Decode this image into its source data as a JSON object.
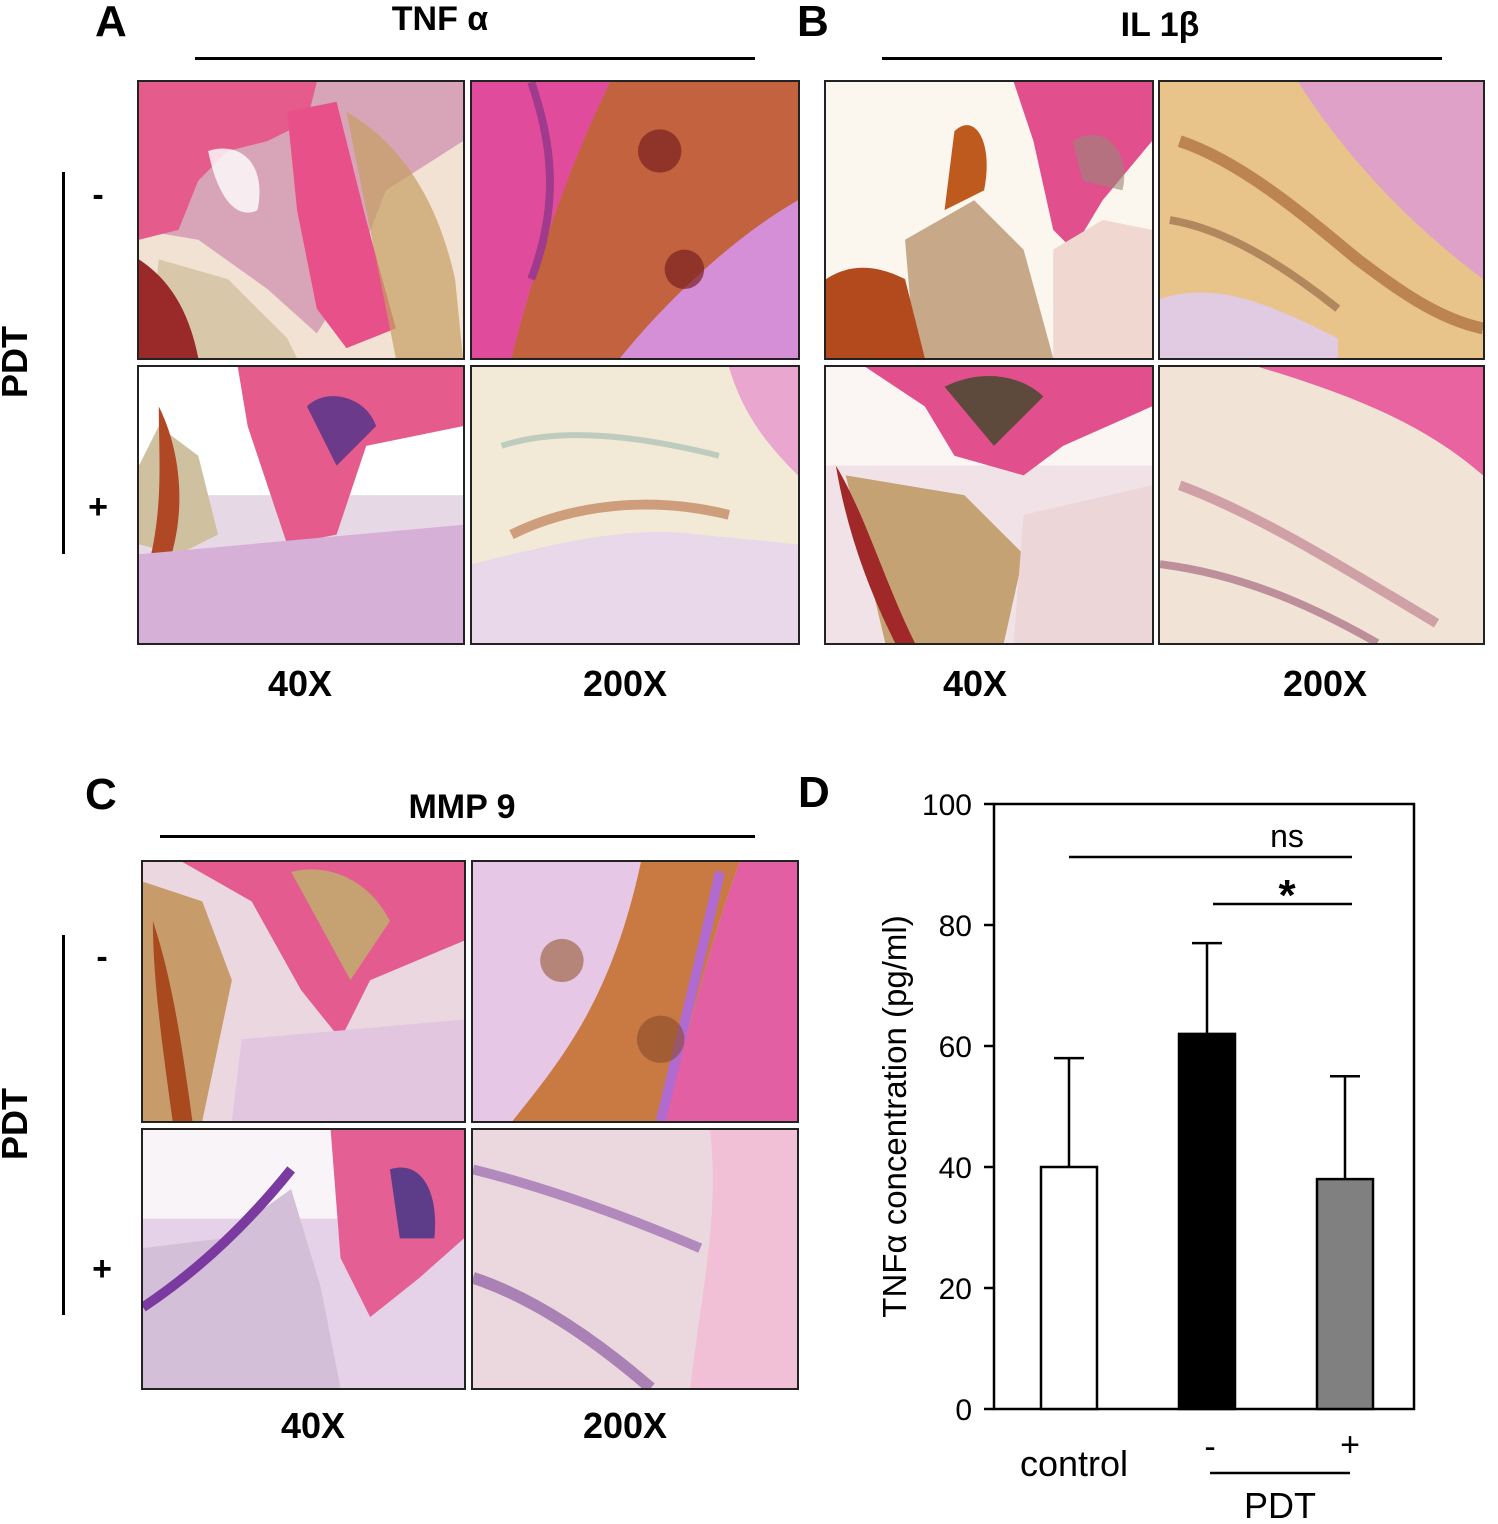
{
  "panels": {
    "A": {
      "letter": "A",
      "marker": "TNF α",
      "side_label": "PDT",
      "minus": "-",
      "plus": "+",
      "mag_low": "40X",
      "mag_high": "200X"
    },
    "B": {
      "letter": "B",
      "marker": "IL 1β",
      "mag_low": "40X",
      "mag_high": "200X"
    },
    "C": {
      "letter": "C",
      "marker": "MMP 9",
      "side_label": "PDT",
      "minus": "-",
      "plus": "+",
      "mag_low": "40X",
      "mag_high": "200X"
    },
    "D": {
      "letter": "D"
    }
  },
  "chart_data": {
    "type": "bar",
    "categories": [
      "control",
      "-",
      "+"
    ],
    "group_label": "PDT",
    "values": [
      40,
      62,
      38
    ],
    "errors": [
      18,
      15,
      17
    ],
    "bar_colors": [
      "#ffffff",
      "#000000",
      "#808080"
    ],
    "ylabel": "TNFα concentration (pg/ml)",
    "ylim": [
      0,
      100
    ],
    "yticks": [
      0,
      20,
      40,
      60,
      80,
      100
    ],
    "grid": false,
    "significance": [
      {
        "from": 0,
        "to": 2,
        "label": "ns"
      },
      {
        "from": 1,
        "to": 2,
        "label": "*"
      }
    ]
  }
}
